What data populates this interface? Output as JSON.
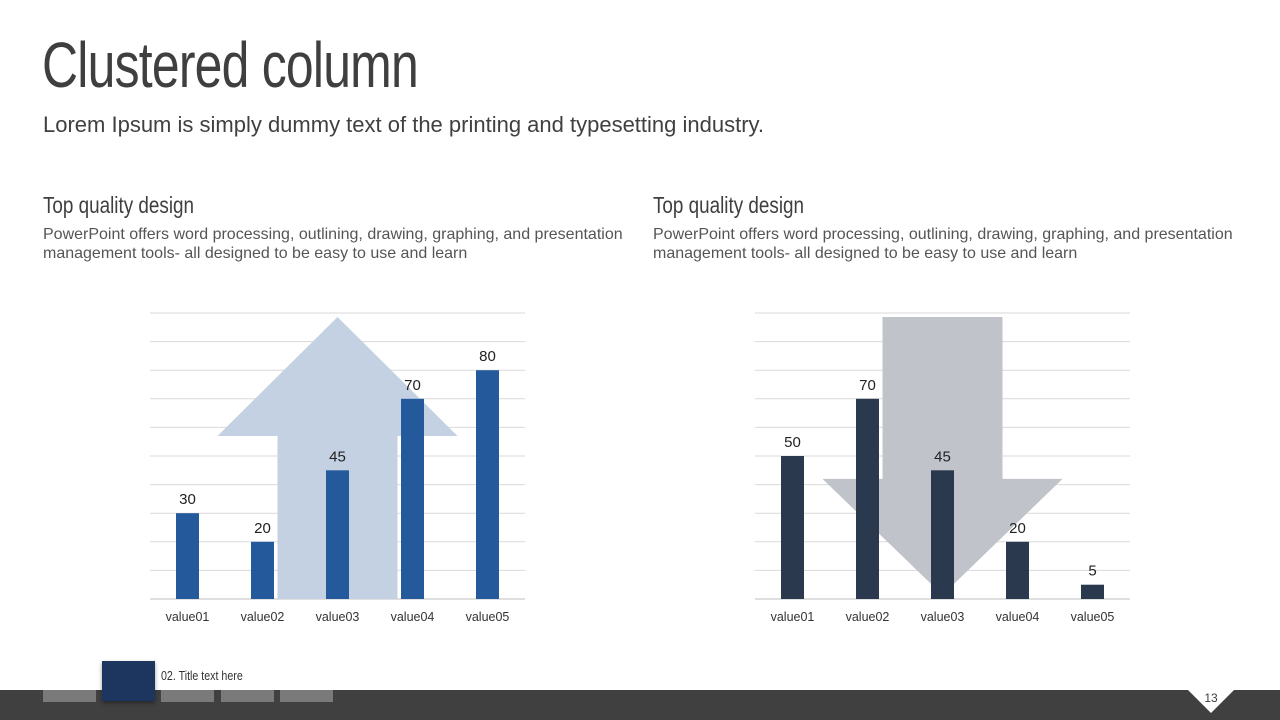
{
  "slide": {
    "title": "Clustered column",
    "subtitle": "Lorem Ipsum is simply dummy text of the printing and typesetting industry."
  },
  "columns": [
    {
      "heading": "Top quality design",
      "body": "PowerPoint offers word processing, outlining, drawing, graphing, and presentation management tools- all designed to be easy to use and learn"
    },
    {
      "heading": "Top quality design",
      "body": "PowerPoint offers word processing, outlining, drawing, graphing, and presentation management tools- all designed to be easy to use and learn"
    }
  ],
  "chart_data": [
    {
      "type": "bar",
      "categories": [
        "value01",
        "value02",
        "value03",
        "value04",
        "value05"
      ],
      "values": [
        30,
        20,
        45,
        70,
        80
      ],
      "ylim": [
        0,
        100
      ],
      "grid": true,
      "bar_color": "#245a9b",
      "arrow": "up",
      "arrow_color": "#c3d1e2"
    },
    {
      "type": "bar",
      "categories": [
        "value01",
        "value02",
        "value03",
        "value04",
        "value05"
      ],
      "values": [
        50,
        70,
        45,
        20,
        5
      ],
      "ylim": [
        0,
        100
      ],
      "grid": true,
      "bar_color": "#2b394e",
      "arrow": "down",
      "arrow_color": "#c0c3ca"
    }
  ],
  "footer": {
    "section_title": "02. Title text here",
    "page_number": "13",
    "accent_color": "#1c3660"
  }
}
